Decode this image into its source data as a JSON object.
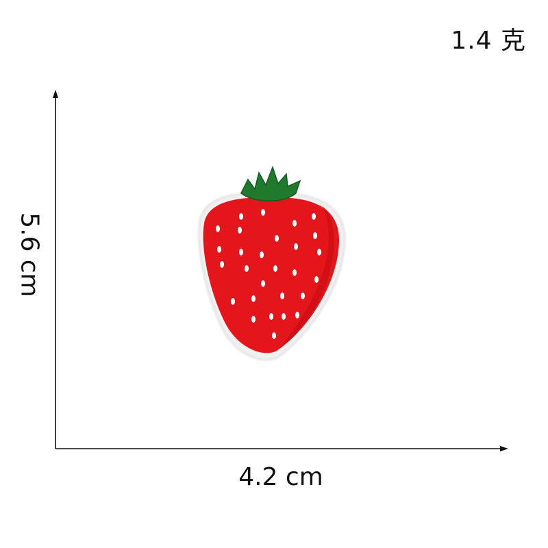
{
  "product": {
    "weight": "1.4 克",
    "width": "4.2 cm",
    "height": "5.6 cm"
  },
  "image": {
    "subject": "strawberry-patch",
    "colors": {
      "berry_red": "#e4161b",
      "berry_dark": "#c10d12",
      "seed_white": "#ffffff",
      "leaf_green": "#1f7a2e",
      "leaf_dark": "#125c20",
      "border_shadow": "#e9e9e9"
    }
  }
}
